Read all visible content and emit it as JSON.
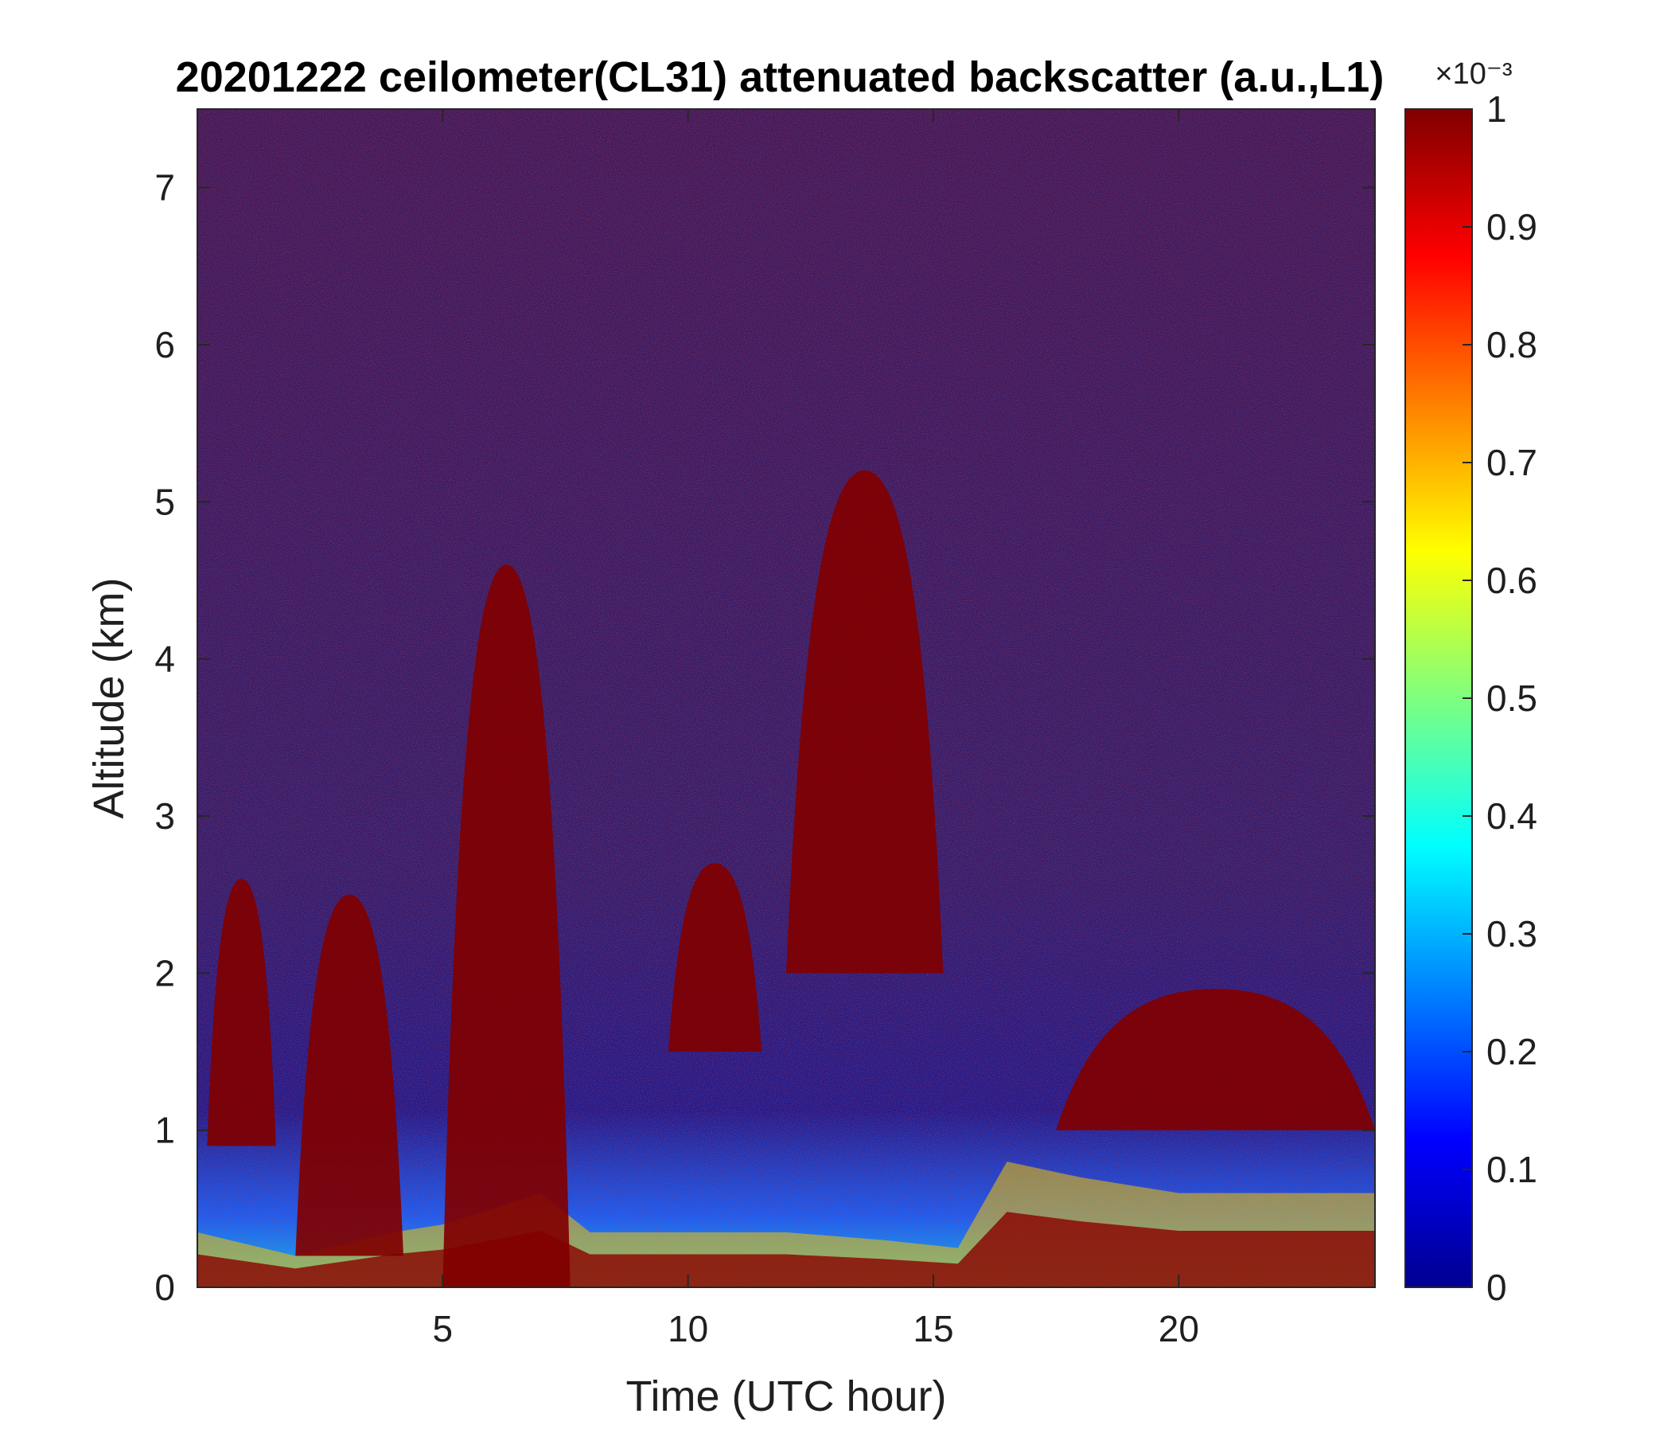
{
  "chart_data": {
    "type": "heatmap",
    "title": "20201222 ceilometer(CL31) attenuated backscatter (a.u.,L1)",
    "xlabel": "Time (UTC hour)",
    "ylabel": "Altitude (km)",
    "xlim": [
      0,
      24
    ],
    "ylim": [
      0,
      7.5
    ],
    "x_ticks": [
      5,
      10,
      15,
      20
    ],
    "y_ticks": [
      0,
      1,
      2,
      3,
      4,
      5,
      6,
      7
    ],
    "colorbar": {
      "label_scale": "×10⁻³",
      "clim": [
        0,
        1
      ],
      "ticks": [
        0,
        0.1,
        0.2,
        0.3,
        0.4,
        0.5,
        0.6,
        0.7,
        0.8,
        0.9,
        1
      ],
      "colormap": "jet",
      "colors": {
        "low": "#00008f",
        "mid": "#7fff7f",
        "high": "#800000"
      }
    },
    "features": {
      "surface_layer_top_km": {
        "x": [
          0,
          2,
          4,
          5,
          6,
          7,
          8,
          10,
          12,
          14,
          15.5,
          16.5,
          18,
          20,
          22,
          24
        ],
        "y": [
          0.35,
          0.2,
          0.35,
          0.4,
          0.5,
          0.6,
          0.35,
          0.35,
          0.35,
          0.3,
          0.25,
          0.8,
          0.7,
          0.6,
          0.6,
          0.6
        ]
      },
      "dense_layers": [
        {
          "x_start": 0.2,
          "x_end": 1.6,
          "y_bottom": 0.9,
          "y_top": 2.6
        },
        {
          "x_start": 2.0,
          "x_end": 4.2,
          "y_bottom": 0.2,
          "y_top": 2.5
        },
        {
          "x_start": 5.0,
          "x_end": 7.6,
          "y_bottom": 0.0,
          "y_top": 4.6
        },
        {
          "x_start": 9.6,
          "x_end": 11.5,
          "y_bottom": 1.5,
          "y_top": 2.7
        },
        {
          "x_start": 12.0,
          "x_end": 15.2,
          "y_bottom": 2.0,
          "y_top": 5.2
        },
        {
          "x_start": 17.5,
          "x_end": 24.0,
          "y_bottom": 1.0,
          "y_top": 1.9
        }
      ]
    }
  }
}
